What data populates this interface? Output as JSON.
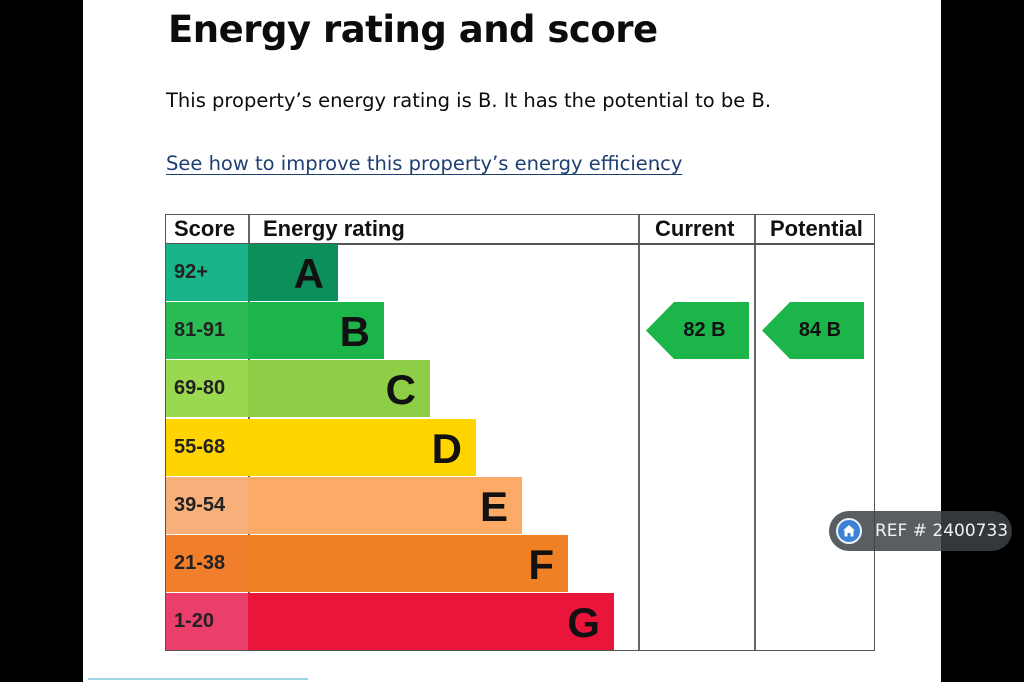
{
  "heading": "Energy rating and score",
  "summary": "This property’s energy rating is B. It has the potential to be B.",
  "improve_link": "See how to improve this property’s energy efficiency",
  "improve_link_suffix": ".",
  "table": {
    "headers": {
      "score": "Score",
      "rating": "Energy rating",
      "current": "Current",
      "potential": "Potential"
    },
    "bands": [
      {
        "score": "92+",
        "letter": "A",
        "color": "#0c8f5a",
        "score_bg": "#19b48a"
      },
      {
        "score": "81-91",
        "letter": "B",
        "color": "#1bb54a",
        "score_bg": "#2cbc56"
      },
      {
        "score": "69-80",
        "letter": "C",
        "color": "#8dce46",
        "score_bg": "#9ad84f"
      },
      {
        "score": "55-68",
        "letter": "D",
        "color": "#ffd500",
        "score_bg": "#ffd400"
      },
      {
        "score": "39-54",
        "letter": "E",
        "color": "#fcaa65",
        "score_bg": "#f8b07a"
      },
      {
        "score": "21-38",
        "letter": "F",
        "color": "#ef8023",
        "score_bg": "#f17e2c"
      },
      {
        "score": "1-20",
        "letter": "G",
        "color": "#e9153b",
        "score_bg": "#ea3e6b"
      }
    ],
    "current": {
      "label": "82  B",
      "band": "B",
      "color": "#1bb54a"
    },
    "potential": {
      "label": "84  B",
      "band": "B",
      "color": "#1bb54a"
    }
  },
  "badge": {
    "text": "REF # 2400733",
    "icon": "home-icon",
    "icon_color": "#3b82d6"
  }
}
